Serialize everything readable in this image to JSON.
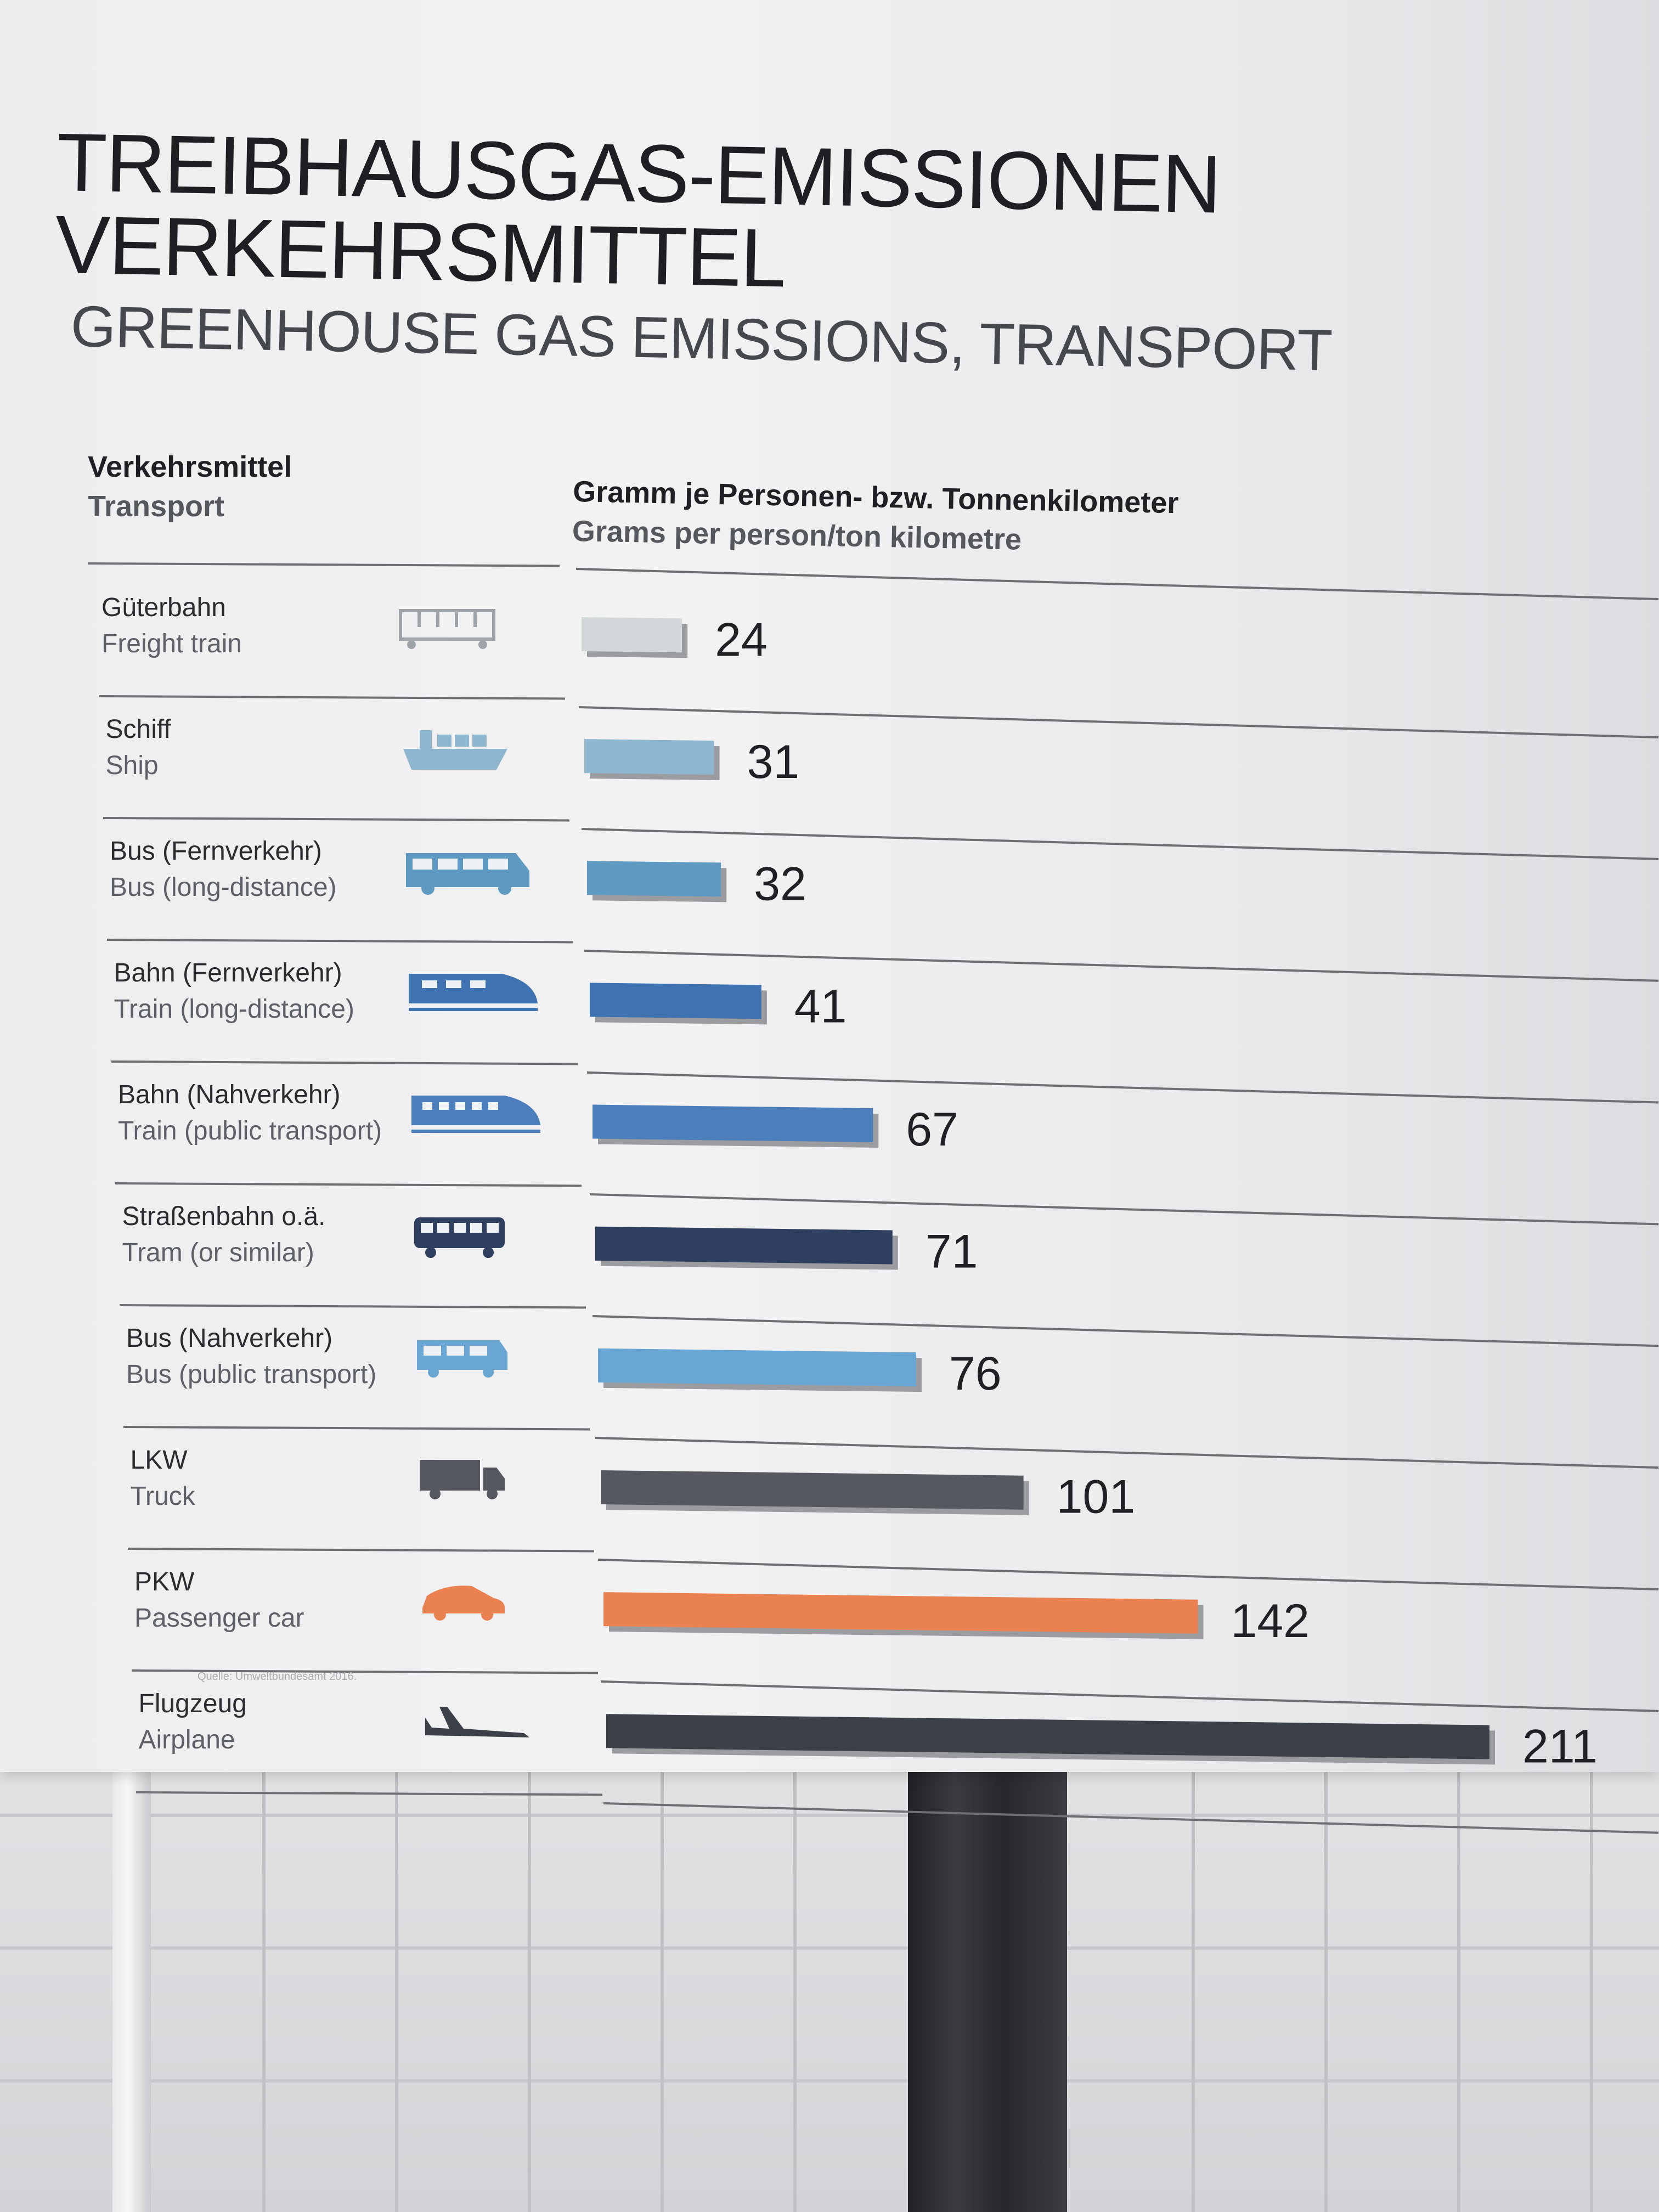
{
  "title_de_line1": "TREIBHAUSGAS-EMISSIONEN",
  "title_de_line2": "VERKEHRSMITTEL",
  "title_en": "GREENHOUSE GAS EMISSIONS, TRANSPORT",
  "columns": {
    "transport_de": "Verkehrsmittel",
    "transport_en": "Transport",
    "unit_de": "Gramm je Personen- bzw. Tonnenkilometer",
    "unit_en": "Grams per person/ton kilometre"
  },
  "source": "Quelle: Umweltbundesamt 2016.",
  "chart_data": {
    "type": "bar",
    "orientation": "horizontal",
    "categories": [
      "Güterbahn / Freight train",
      "Schiff / Ship",
      "Bus (Fernverkehr) / Bus (long-distance)",
      "Bahn (Fernverkehr) / Train (long-distance)",
      "Bahn (Nahverkehr) / Train (public transport)",
      "Straßenbahn o.ä. / Tram (or similar)",
      "Bus (Nahverkehr) / Bus (public transport)",
      "LKW / Truck",
      "PKW / Passenger car",
      "Flugzeug / Airplane"
    ],
    "values": [
      24,
      31,
      32,
      41,
      67,
      71,
      76,
      101,
      142,
      211
    ],
    "xlim": [
      0,
      211
    ],
    "grid": false,
    "legend": "none"
  },
  "rows": [
    {
      "de": "Güterbahn",
      "en": "Freight train",
      "value": "24",
      "icon": "freight-train-icon",
      "color": "#d2d8da"
    },
    {
      "de": "Schiff",
      "en": "Ship",
      "value": "31",
      "icon": "ship-icon",
      "color": "#8fb6cf"
    },
    {
      "de": "Bus (Fernverkehr)",
      "en": "Bus (long-distance)",
      "value": "32",
      "icon": "coach-bus-icon",
      "color": "#5f9ac3"
    },
    {
      "de": "Bahn (Fernverkehr)",
      "en": "Train (long-distance)",
      "value": "41",
      "icon": "high-speed-train-icon",
      "color": "#3f72b0"
    },
    {
      "de": "Bahn (Nahverkehr)",
      "en": "Train (public transport)",
      "value": "67",
      "icon": "regional-train-icon",
      "color": "#4b7ebb"
    },
    {
      "de": "Straßenbahn o.ä.",
      "en": "Tram (or similar)",
      "value": "71",
      "icon": "tram-icon",
      "color": "#2e3f60"
    },
    {
      "de": "Bus (Nahverkehr)",
      "en": "Bus (public transport)",
      "value": "76",
      "icon": "city-bus-icon",
      "color": "#6aa6d3"
    },
    {
      "de": "LKW",
      "en": "Truck",
      "value": "101",
      "icon": "truck-icon",
      "color": "#55585e"
    },
    {
      "de": "PKW",
      "en": "Passenger car",
      "value": "142",
      "icon": "car-icon",
      "color": "#ea8150"
    },
    {
      "de": "Flugzeug",
      "en": "Airplane",
      "value": "211",
      "icon": "airplane-icon",
      "color": "#3c4048"
    }
  ]
}
